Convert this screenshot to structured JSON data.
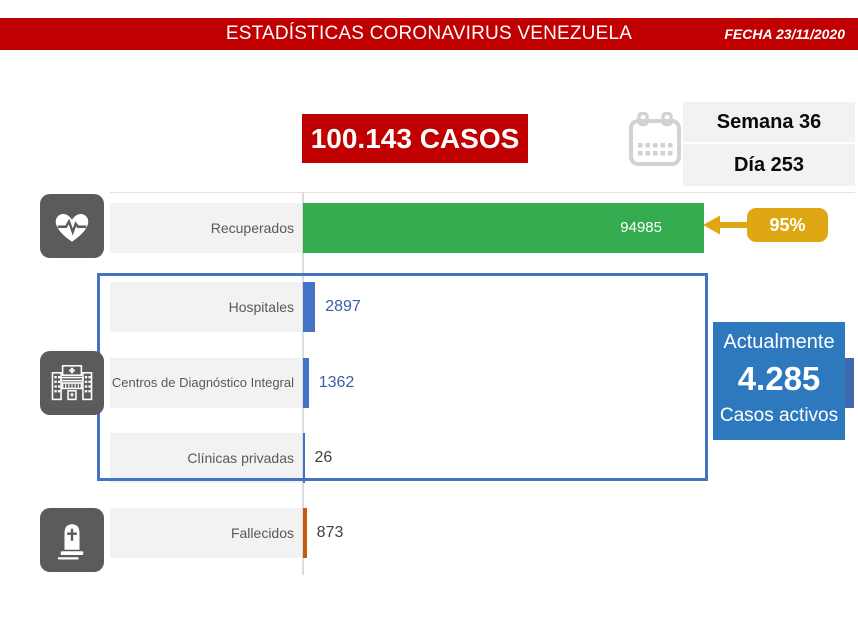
{
  "banner": {
    "title": "ESTADÍSTICAS CORONAVIRUS VENEZUELA",
    "date": "FECHA 23/11/2020"
  },
  "summary": {
    "total_cases": "100.143 CASOS",
    "week": "Semana 36",
    "day": "Día 253",
    "recovered_pct": "95%"
  },
  "active_cases": {
    "line1": "Actualmente",
    "value": "4.285",
    "line2": "Casos activos"
  },
  "chart_data": {
    "type": "bar",
    "orientation": "horizontal",
    "title": "",
    "xlabel": "",
    "ylabel": "",
    "grid": false,
    "legend": false,
    "xlim": [
      0,
      100143
    ],
    "categories": [
      "Recuperados",
      "Hospitales",
      "Centros de Diagnóstico Integral",
      "Clínicas privadas",
      "Fallecidos"
    ],
    "values": [
      94985,
      2897,
      1362,
      26,
      873
    ],
    "rows": [
      {
        "label": "Recuperados",
        "value": "94985",
        "num": 94985,
        "color": "#35AB4F"
      },
      {
        "label": "Hospitales",
        "value": "2897",
        "num": 2897,
        "color": "#4472C4"
      },
      {
        "label": "Centros de Diagnóstico Integral",
        "value": "1362",
        "num": 1362,
        "color": "#4472C4"
      },
      {
        "label": "Clínicas privadas",
        "value": "26",
        "num": 26,
        "color": "#4472C4"
      },
      {
        "label": "Fallecidos",
        "value": "873",
        "num": 873,
        "color": "#C55A11"
      }
    ],
    "annotation": {
      "text": "95%",
      "points_to": "Recuperados"
    }
  },
  "icons": {
    "calendar": "calendar-icon",
    "recovered": "heart-pulse-icon",
    "hospitals": "hospital-icon",
    "deaths": "tombstone-icon"
  },
  "colors": {
    "banner_red": "#C00000",
    "recovered_green": "#35AB4F",
    "badge_gold": "#DFA713",
    "bar_blue": "#4472C4",
    "active_blue": "#2E79BD",
    "deaths_orange": "#C55A11",
    "icon_gray": "#5B5B5B",
    "label_bg_gray": "#F2F2F2"
  }
}
